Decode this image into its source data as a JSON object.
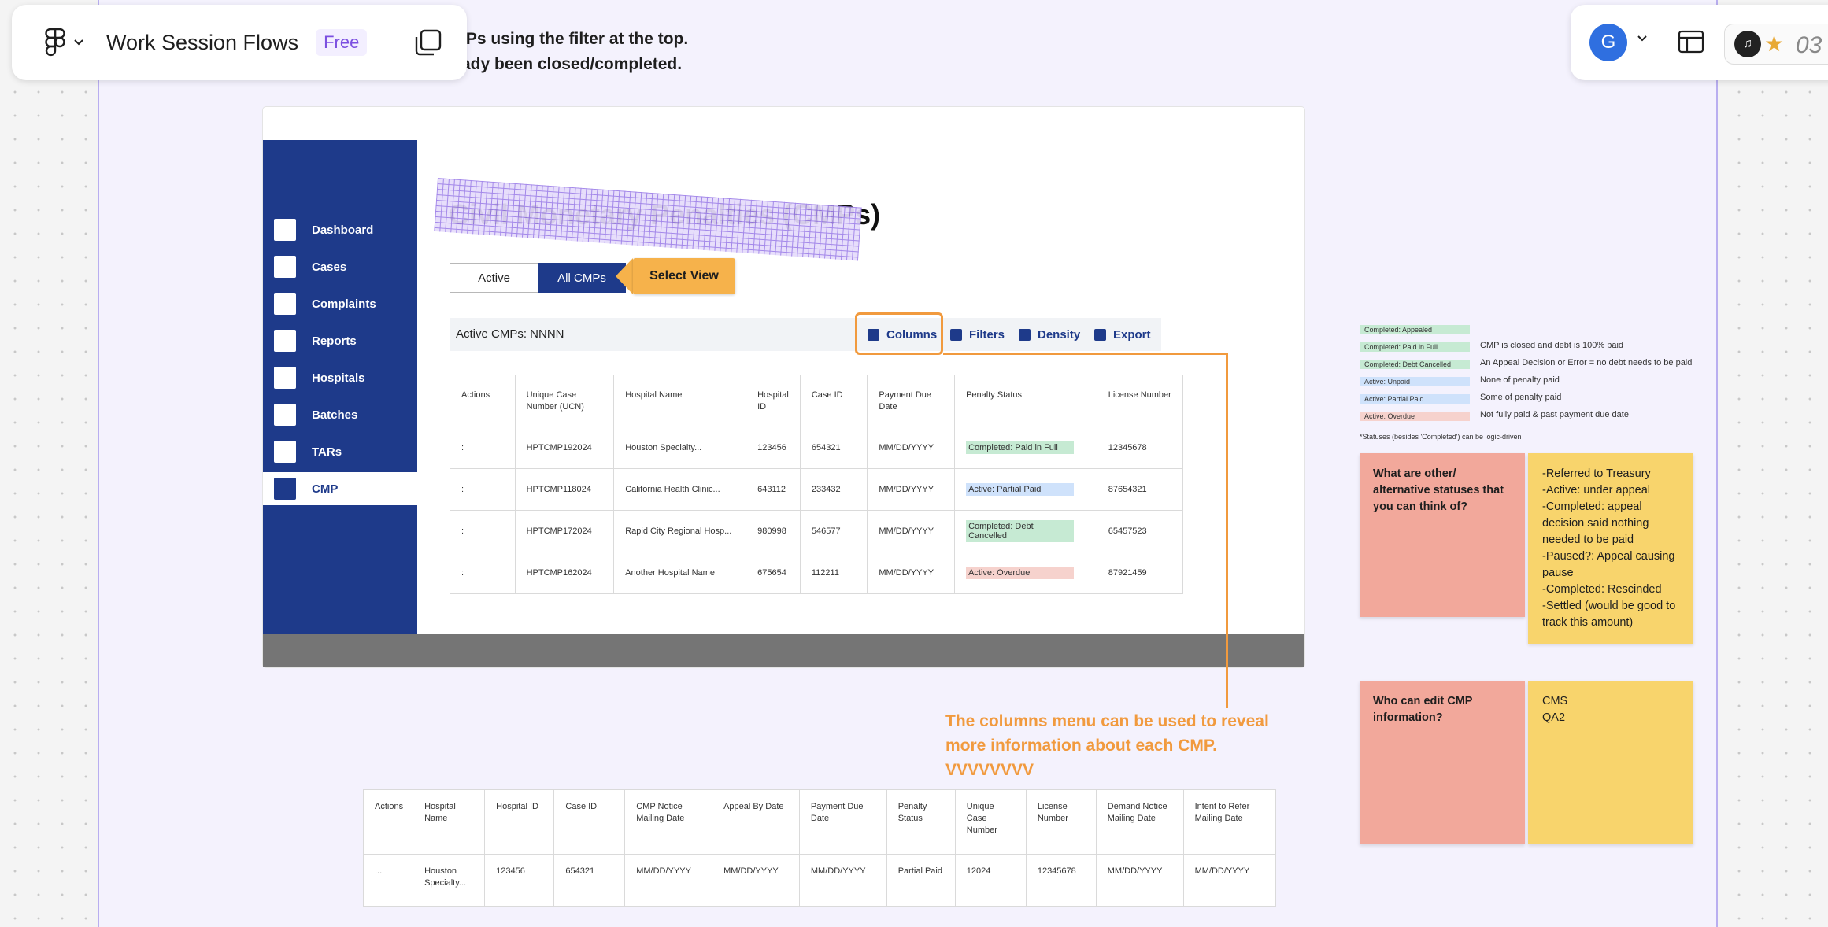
{
  "toolbar": {
    "file_title": "Work Session Flows",
    "plan_badge": "Free",
    "figma_logo_icon": "figma-logo-icon",
    "menu_chevron_icon": "chevron-down-icon",
    "pages_icon": "pages-icon"
  },
  "right_toolbar": {
    "avatar_initial": "G",
    "timer_text": "03"
  },
  "section_note": {
    "line1": "IPs using the filter at the top.",
    "line2": "ady been closed/completed."
  },
  "app": {
    "sidebar_items": [
      {
        "label": "Dashboard"
      },
      {
        "label": "Cases"
      },
      {
        "label": "Complaints"
      },
      {
        "label": "Reports"
      },
      {
        "label": "Hospitals"
      },
      {
        "label": "Batches"
      },
      {
        "label": "TARs"
      },
      {
        "label": "CMP"
      }
    ],
    "page_title": "Civil Monetary Penalties (CMPs)",
    "view_tabs": {
      "active": "Active",
      "all": "All CMPs"
    },
    "callout": "Select View",
    "count_label": "Active CMPs: NNNN",
    "tools": {
      "columns": "Columns",
      "filters": "Filters",
      "density": "Density",
      "export": "Export"
    },
    "table": {
      "headers": [
        "Actions",
        "Unique Case Number (UCN)",
        "Hospital Name",
        "Hospital ID",
        "Case ID",
        "Payment Due Date",
        "Penalty Status",
        "License Number"
      ],
      "rows": [
        {
          "action": ":",
          "ucn": "HPTCMP192024",
          "hospital": "Houston Specialty...",
          "hospital_id": "123456",
          "case_id": "654321",
          "due": "MM/DD/YYYY",
          "status": "Completed: Paid in Full",
          "license": "12345678"
        },
        {
          "action": ":",
          "ucn": "HPTCMP118024",
          "hospital": "California Health Clinic...",
          "hospital_id": "643112",
          "case_id": "233432",
          "due": "MM/DD/YYYY",
          "status": "Active: Partial Paid",
          "license": "87654321"
        },
        {
          "action": ":",
          "ucn": "HPTCMP172024",
          "hospital": "Rapid City Regional Hosp...",
          "hospital_id": "980998",
          "case_id": "546577",
          "due": "MM/DD/YYYY",
          "status": "Completed: Debt Cancelled",
          "license": "65457523"
        },
        {
          "action": ":",
          "ucn": "HPTCMP162024",
          "hospital": "Another Hospital Name",
          "hospital_id": "675654",
          "case_id": "112211",
          "due": "MM/DD/YYYY",
          "status": "Active: Overdue",
          "license": "87921459"
        }
      ]
    }
  },
  "columns_note": "The columns menu can be used to reveal more information about each CMP. VVVVVVVV",
  "expanded_table": {
    "headers": [
      "Actions",
      "Hospital Name",
      "Hospital ID",
      "Case ID",
      "CMP Notice Mailing Date",
      "Appeal By Date",
      "Payment Due Date",
      "Penalty Status",
      "Unique Case Number",
      "License Number",
      "Demand Notice Mailing Date",
      "Intent to Refer Mailing Date"
    ],
    "row": [
      "...",
      "Houston Specialty...",
      "123456",
      "654321",
      "MM/DD/YYYY",
      "MM/DD/YYYY",
      "MM/DD/YYYY",
      "Partial Paid",
      "12024",
      "12345678",
      "MM/DD/YYYY",
      "MM/DD/YYYY"
    ]
  },
  "legend": {
    "items": [
      {
        "chip": "Completed: Appealed",
        "desc": ""
      },
      {
        "chip": "Completed: Paid in Full",
        "desc": "CMP is closed and debt is 100% paid"
      },
      {
        "chip": "Completed: Debt Cancelled",
        "desc": "An Appeal Decision or Error = no debt needs to be paid"
      },
      {
        "chip": "Active: Unpaid",
        "desc": "None of penalty paid"
      },
      {
        "chip": "Active: Partial Paid",
        "desc": "Some of penalty paid"
      },
      {
        "chip": "Active: Overdue",
        "desc": "Not fully paid & past payment due date"
      }
    ],
    "footnote": "*Statuses (besides 'Completed') can be logic-driven"
  },
  "stickies": {
    "q1": "What are other/ alternative statuses that you can think of?",
    "a1": "-Referred to Treasury\n-Active: under appeal\n-Completed: appeal decision said nothing needed to be paid\n-Paused?: Appeal causing pause\n-Completed: Rescinded\n-Settled (would be good to track this amount)",
    "q2": "Who can edit CMP information?",
    "a2": "CMS\nQA2"
  },
  "colors": {
    "navy": "#1e3a8a",
    "accent_orange": "#f19a3e",
    "callout_orange": "#f6b24b",
    "completed_green": "#c6ead3",
    "active_blue": "#cfe2fb",
    "overdue_red": "#f6d2cd",
    "sticky_pink": "#f2a89b",
    "sticky_yellow": "#f8d46c"
  }
}
